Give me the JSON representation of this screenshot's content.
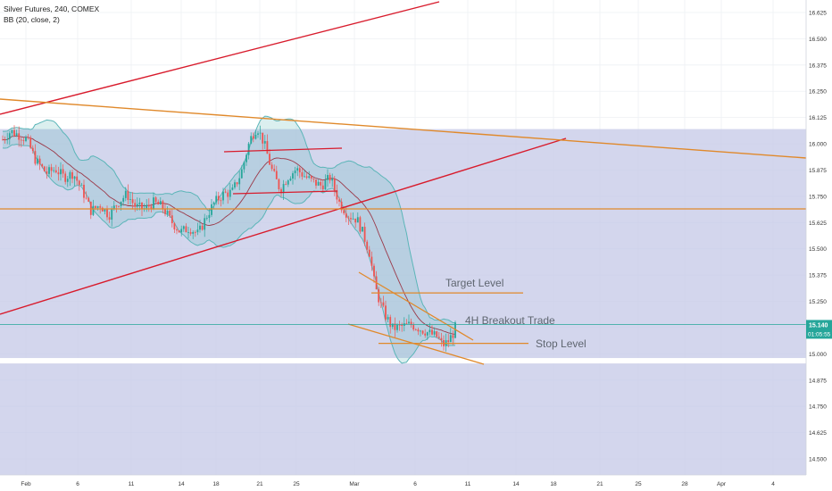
{
  "header": {
    "symbol_line": "Silver Futures, 240, COMEX",
    "indicator_line": "BB (20, close, 2)"
  },
  "chart_data": {
    "type": "candlestick",
    "y_axis": {
      "ylim": [
        14.42,
        16.67
      ],
      "ticks": [
        "16.625",
        "16.500",
        "16.375",
        "16.250",
        "16.125",
        "16.000",
        "15.875",
        "15.750",
        "15.625",
        "15.500",
        "15.375",
        "15.250",
        "15.125",
        "15.000",
        "14.875",
        "14.750",
        "14.625",
        "14.500"
      ]
    },
    "x_axis": {
      "ticks": [
        "Feb",
        "6",
        "11",
        "14",
        "18",
        "21",
        "25",
        "Mar",
        "6",
        "11",
        "14",
        "18",
        "21",
        "25",
        "28",
        "Apr",
        "4"
      ]
    },
    "current_price": {
      "label": "15.140",
      "countdown": "01:05:55",
      "value": 15.14
    },
    "annotations": [
      {
        "text": "Target Level"
      },
      {
        "text": "4H Breakout Trade"
      },
      {
        "text": "Stop Level"
      }
    ],
    "levels": {
      "horizontal_resistance": 15.69,
      "target": 15.29,
      "stop": 15.05,
      "white_band_top": 14.98,
      "shaded_zone": [
        14.97,
        16.07
      ]
    },
    "colors": {
      "up": "#26a69a",
      "down": "#ef5350",
      "bb_band": "#5bb5b8",
      "bb_basis": "#9b3a4a",
      "trend_red": "#d81b2c",
      "trend_orange": "#e0892b",
      "zone": "#c7cbe8",
      "price_tag": "#26a69a"
    }
  }
}
